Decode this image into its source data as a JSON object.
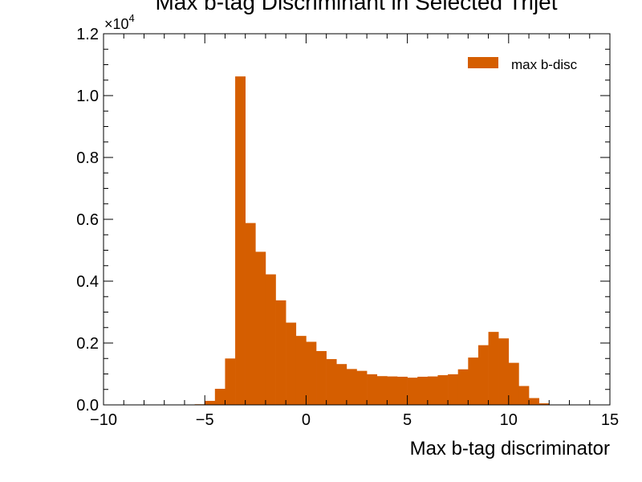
{
  "chart_data": {
    "type": "bar",
    "title": "Max b-tag Discriminant in Selected Trijet",
    "xlabel": "Max b-tag discriminator",
    "ylabel": "",
    "y_multiplier_label": "×10",
    "y_multiplier_exponent": "4",
    "xlim": [
      -10,
      15
    ],
    "ylim": [
      0,
      12000
    ],
    "x_ticks": [
      -10,
      -5,
      0,
      5,
      10,
      15
    ],
    "x_tick_labels": [
      "−10",
      "−5",
      "0",
      "5",
      "10",
      "15"
    ],
    "y_ticks": [
      0,
      2000,
      4000,
      6000,
      8000,
      10000,
      12000
    ],
    "y_tick_labels": [
      "0.0",
      "0.2",
      "0.4",
      "0.6",
      "0.8",
      "1.0",
      "1.2"
    ],
    "legend_placement": "top-right",
    "grid": false,
    "series": [
      {
        "name": "max b-disc",
        "color": "#d55e00",
        "bin_width": 0.5,
        "bin_edges_start": -5.5,
        "values": [
          20,
          130,
          520,
          1500,
          10620,
          5880,
          4950,
          4220,
          3380,
          2660,
          2230,
          2040,
          1740,
          1480,
          1320,
          1160,
          1100,
          990,
          930,
          920,
          910,
          880,
          910,
          920,
          960,
          990,
          1150,
          1530,
          1930,
          2360,
          2150,
          1360,
          610,
          220,
          50,
          10
        ]
      }
    ]
  }
}
